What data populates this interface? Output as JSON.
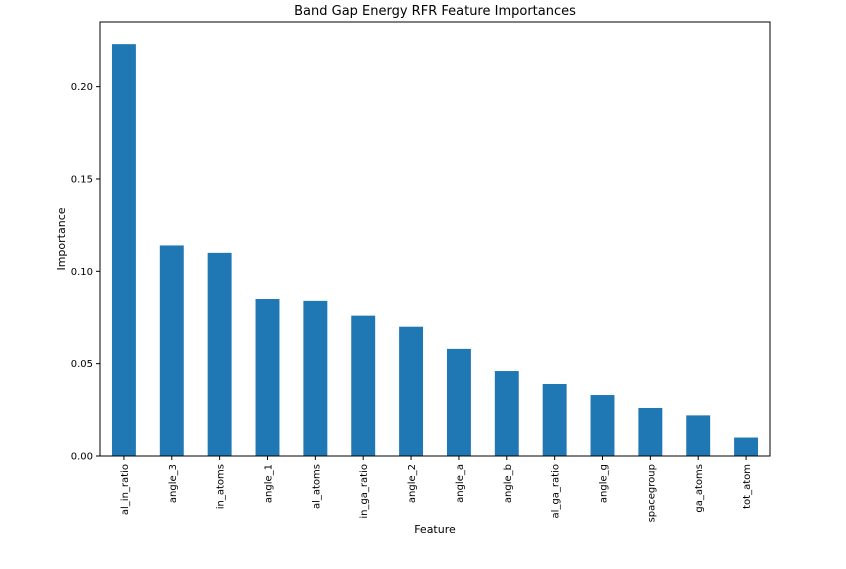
{
  "chart_data": {
    "type": "bar",
    "title": "Band Gap Energy RFR Feature Importances",
    "xlabel": "Feature",
    "ylabel": "Importance",
    "ylim": [
      0,
      0.235
    ],
    "yticks": [
      "0.00",
      "0.05",
      "0.10",
      "0.15",
      "0.20"
    ],
    "bar_color": "#1f77b4",
    "grid": false,
    "legend": "none",
    "categories": [
      "al_in_ratio",
      "angle_3",
      "in_atoms",
      "angle_1",
      "al_atoms",
      "in_ga_ratio",
      "angle_2",
      "angle_a",
      "angle_b",
      "al_ga_ratio",
      "angle_g",
      "spacegroup",
      "ga_atoms",
      "tot_atom"
    ],
    "values": [
      0.223,
      0.114,
      0.11,
      0.085,
      0.084,
      0.076,
      0.07,
      0.058,
      0.046,
      0.039,
      0.033,
      0.026,
      0.022,
      0.01
    ]
  }
}
